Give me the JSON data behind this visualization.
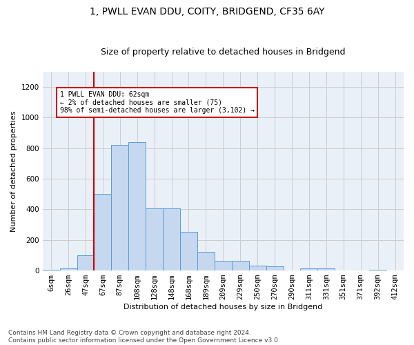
{
  "title": "1, PWLL EVAN DDU, COITY, BRIDGEND, CF35 6AY",
  "subtitle": "Size of property relative to detached houses in Bridgend",
  "xlabel": "Distribution of detached houses by size in Bridgend",
  "ylabel": "Number of detached properties",
  "categories": [
    "6sqm",
    "26sqm",
    "47sqm",
    "67sqm",
    "87sqm",
    "108sqm",
    "128sqm",
    "148sqm",
    "168sqm",
    "189sqm",
    "209sqm",
    "229sqm",
    "250sqm",
    "270sqm",
    "290sqm",
    "311sqm",
    "331sqm",
    "351sqm",
    "371sqm",
    "392sqm",
    "412sqm"
  ],
  "values": [
    5,
    12,
    100,
    500,
    820,
    840,
    405,
    405,
    255,
    120,
    65,
    65,
    30,
    28,
    0,
    14,
    12,
    0,
    0,
    3,
    0
  ],
  "bar_color": "#c5d8f0",
  "bar_edge_color": "#5b9bd5",
  "vline_x_index": 3,
  "vline_color": "#cc0000",
  "annotation_text": "1 PWLL EVAN DDU: 62sqm\n← 2% of detached houses are smaller (75)\n98% of semi-detached houses are larger (3,102) →",
  "annotation_box_color": "#ffffff",
  "annotation_box_edge": "#cc0000",
  "ylim": [
    0,
    1300
  ],
  "yticks": [
    0,
    200,
    400,
    600,
    800,
    1000,
    1200
  ],
  "footnote": "Contains HM Land Registry data © Crown copyright and database right 2024.\nContains public sector information licensed under the Open Government Licence v3.0.",
  "bg_color": "#ffffff",
  "grid_color": "#cccccc",
  "title_fontsize": 10,
  "subtitle_fontsize": 9,
  "axis_label_fontsize": 8,
  "tick_fontsize": 7.5,
  "footnote_fontsize": 6.5
}
